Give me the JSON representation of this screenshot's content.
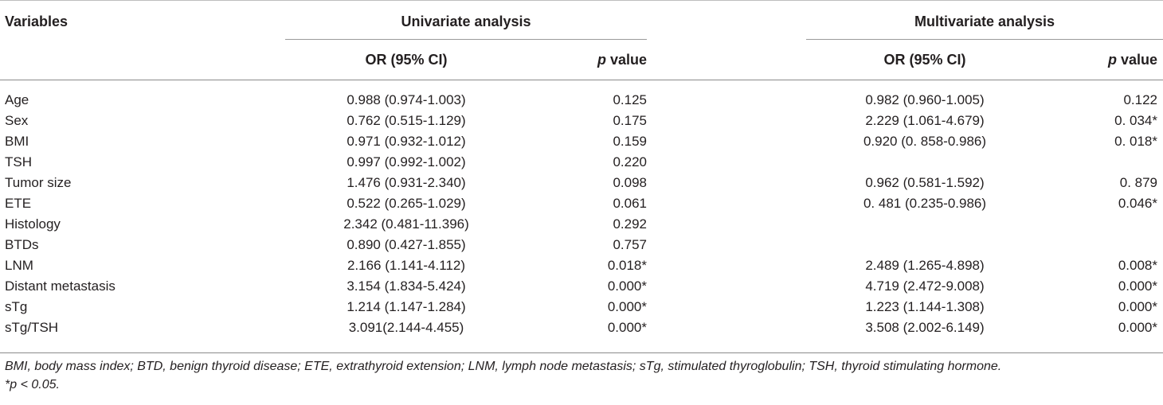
{
  "header": {
    "variables": "Variables",
    "univariate": "Univariate analysis",
    "multivariate": "Multivariate analysis",
    "or_ci": "OR (95% CI)",
    "p_italic": "p",
    "p_value_suffix": " value"
  },
  "rows": [
    {
      "variable": "Age",
      "uni_or": "0.988 (0.974-1.003)",
      "uni_p": "0.125",
      "multi_or": "0.982 (0.960-1.005)",
      "multi_p": "0.122"
    },
    {
      "variable": "Sex",
      "uni_or": "0.762 (0.515-1.129)",
      "uni_p": "0.175",
      "multi_or": "2.229 (1.061-4.679)",
      "multi_p": "0. 034*"
    },
    {
      "variable": "BMI",
      "uni_or": "0.971 (0.932-1.012)",
      "uni_p": "0.159",
      "multi_or": "0.920 (0. 858-0.986)",
      "multi_p": "0. 018*"
    },
    {
      "variable": "TSH",
      "uni_or": "0.997 (0.992-1.002)",
      "uni_p": "0.220",
      "multi_or": "",
      "multi_p": ""
    },
    {
      "variable": "Tumor size",
      "uni_or": "1.476 (0.931-2.340)",
      "uni_p": "0.098",
      "multi_or": "0.962 (0.581-1.592)",
      "multi_p": "0. 879"
    },
    {
      "variable": "ETE",
      "uni_or": "0.522 (0.265-1.029)",
      "uni_p": "0.061",
      "multi_or": "0. 481 (0.235-0.986)",
      "multi_p": "0.046*"
    },
    {
      "variable": "Histology",
      "uni_or": "2.342 (0.481-11.396)",
      "uni_p": "0.292",
      "multi_or": "",
      "multi_p": ""
    },
    {
      "variable": "BTDs",
      "uni_or": "0.890 (0.427-1.855)",
      "uni_p": "0.757",
      "multi_or": "",
      "multi_p": ""
    },
    {
      "variable": "LNM",
      "uni_or": "2.166 (1.141-4.112)",
      "uni_p": "0.018*",
      "multi_or": "2.489 (1.265-4.898)",
      "multi_p": "0.008*"
    },
    {
      "variable": "Distant metastasis",
      "uni_or": "3.154 (1.834-5.424)",
      "uni_p": "0.000*",
      "multi_or": "4.719 (2.472-9.008)",
      "multi_p": "0.000*"
    },
    {
      "variable": "sTg",
      "uni_or": "1.214 (1.147-1.284)",
      "uni_p": "0.000*",
      "multi_or": "1.223 (1.144-1.308)",
      "multi_p": "0.000*"
    },
    {
      "variable": "sTg/TSH",
      "uni_or": "3.091(2.144-4.455)",
      "uni_p": "0.000*",
      "multi_or": "3.508 (2.002-6.149)",
      "multi_p": "0.000*"
    }
  ],
  "footnotes": {
    "abbreviations": "BMI, body mass index; BTD, benign thyroid disease; ETE, extrathyroid extension; LNM, lymph node metastasis; sTg, stimulated thyroglobulin; TSH, thyroid stimulating hormone.",
    "significance": "*p < 0.05."
  }
}
